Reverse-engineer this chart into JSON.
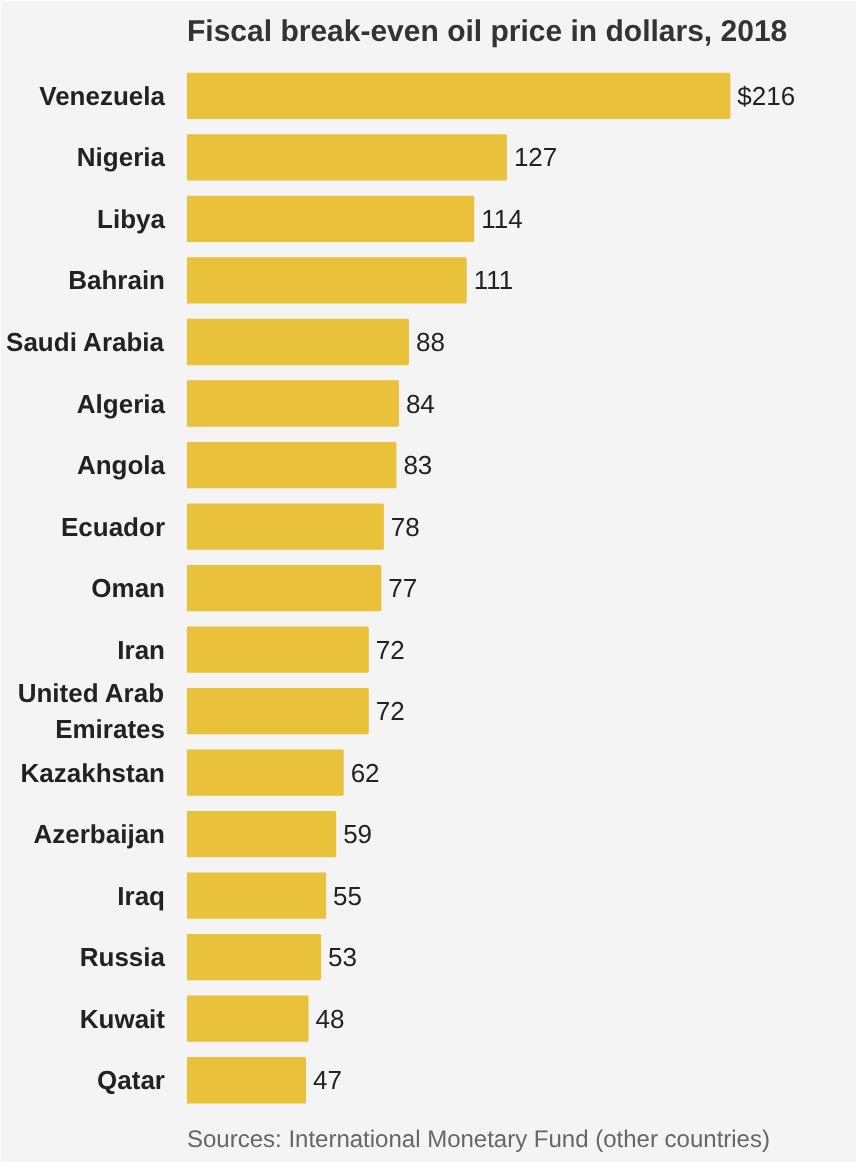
{
  "chart_data": {
    "type": "bar",
    "orientation": "horizontal",
    "title": "Fiscal break-even oil price in dollars, 2018",
    "categories": [
      "Venezuela",
      "Nigeria",
      "Libya",
      "Bahrain",
      "Saudi Arabia",
      "Algeria",
      "Angola",
      "Ecuador",
      "Oman",
      "Iran",
      "United Arab Emirates",
      "Kazakhstan",
      "Azerbaijan",
      "Iraq",
      "Russia",
      "Kuwait",
      "Qatar"
    ],
    "values": [
      216,
      127,
      114,
      111,
      88,
      84,
      83,
      78,
      77,
      72,
      72,
      62,
      59,
      55,
      53,
      48,
      47
    ],
    "value_labels": [
      "$216",
      "127",
      "114",
      "111",
      "88",
      "84",
      "83",
      "78",
      "77",
      "72",
      "72",
      "62",
      "59",
      "55",
      "53",
      "48",
      "47"
    ],
    "color": "#e9c13b",
    "grid": false,
    "annotations": [
      "Sources: International Monetary Fund (other countries)"
    ]
  }
}
